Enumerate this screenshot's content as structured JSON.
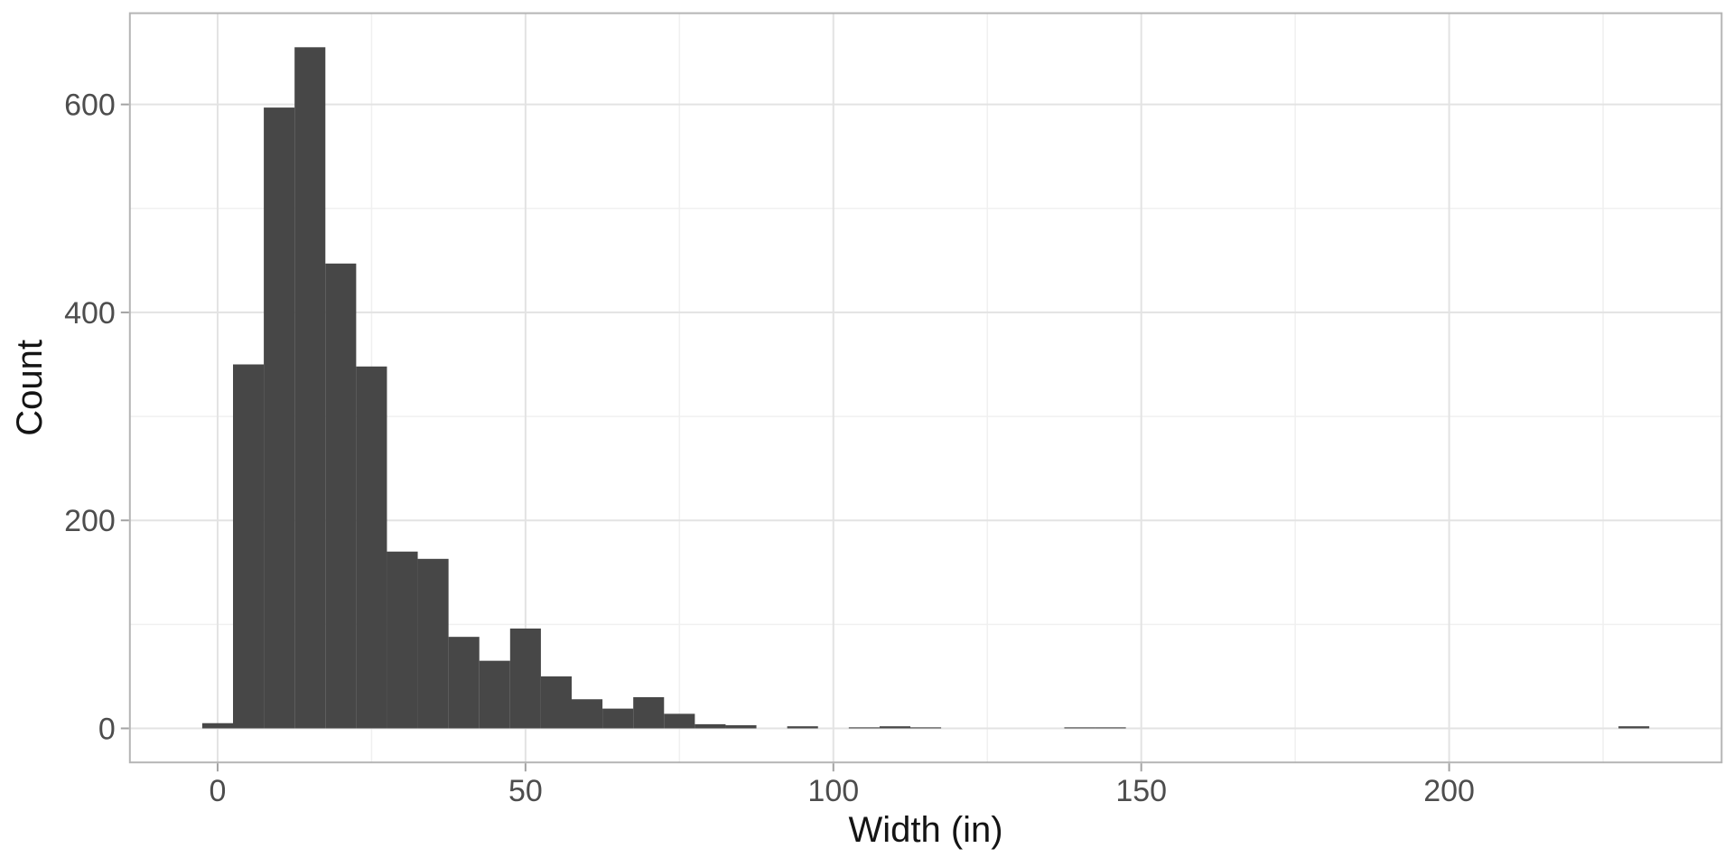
{
  "chart_data": {
    "type": "bar",
    "variant": "histogram",
    "title": "",
    "xlabel": "Width (in)",
    "ylabel": "Count",
    "bin_width": 5,
    "bin_centers": [
      0,
      5,
      10,
      15,
      20,
      25,
      30,
      35,
      40,
      45,
      50,
      55,
      60,
      65,
      70,
      75,
      80,
      85,
      90,
      95,
      100,
      105,
      110,
      115,
      120,
      125,
      130,
      135,
      140,
      145,
      150,
      155,
      160,
      165,
      170,
      175,
      180,
      185,
      190,
      195,
      200,
      205,
      210,
      215,
      220,
      225,
      230
    ],
    "counts": [
      5,
      350,
      597,
      655,
      447,
      348,
      170,
      163,
      88,
      65,
      96,
      50,
      28,
      19,
      30,
      14,
      4,
      3,
      0,
      2,
      0,
      1,
      2,
      1,
      0,
      0,
      0,
      0,
      1,
      1,
      0,
      0,
      0,
      0,
      0,
      0,
      0,
      0,
      0,
      0,
      0,
      0,
      0,
      0,
      0,
      0,
      2
    ],
    "x_ticks": [
      0,
      50,
      100,
      150,
      200
    ],
    "y_ticks": [
      0,
      200,
      400,
      600
    ],
    "x_minor_gridlines": [
      25,
      75,
      125,
      175,
      225
    ],
    "y_minor_gridlines": [
      100,
      300,
      500
    ],
    "xlim": [
      -14.25,
      244.25
    ],
    "ylim": [
      -32.75,
      687.75
    ],
    "grid": true,
    "legend": "none",
    "colors": {
      "bar_fill": "#474747",
      "grid_major": "#e3e3e3",
      "grid_minor": "#f0f0f0",
      "panel_border": "#b5b5b5",
      "tick_mark": "#a3a3a3",
      "tick_label": "#4d4d4d",
      "axis_title": "#141414",
      "background": "#ffffff"
    }
  }
}
